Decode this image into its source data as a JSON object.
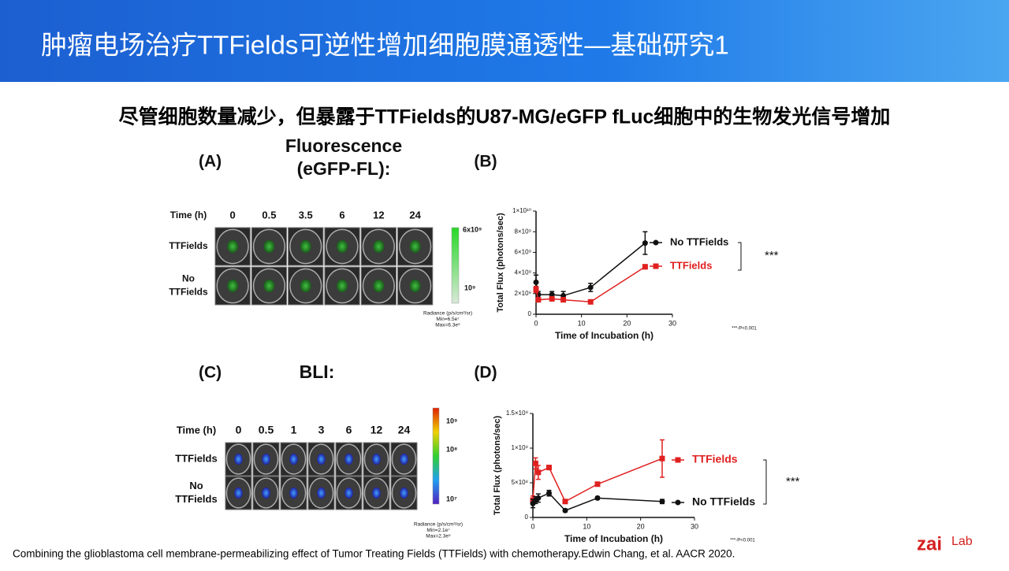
{
  "header": {
    "title": "肿瘤电场治疗TTFields可逆性增加细胞膜通透性—基础研究1"
  },
  "subtitle": "尽管细胞数量减少，但暴露于TTFields的U87-MG/eGFP fLuc细胞中的生物发光信号增加",
  "panel_a": {
    "label": "(A)",
    "title_lines": [
      "Fluorescence",
      "(eGFP-FL):"
    ],
    "time_label": "Time (h)",
    "times": [
      "0",
      "0.5",
      "3.5",
      "6",
      "12",
      "24"
    ],
    "rows": [
      [
        "TTFields"
      ],
      [
        "No",
        "TTFields"
      ]
    ],
    "colorbar_labels": [
      "6x10⁹",
      "10⁹"
    ],
    "radiance_lines": [
      "Radiance (p/s/cm²/sr)",
      "Min=6.5e⁷",
      "Max=6.3e⁹"
    ]
  },
  "panel_c": {
    "label": "(C)",
    "title_lines": [
      "BLI:"
    ],
    "time_label": "Time (h)",
    "times": [
      "0",
      "0.5",
      "1",
      "3",
      "6",
      "12",
      "24"
    ],
    "rows": [
      [
        "TTFields"
      ],
      [
        "No",
        "TTFields"
      ]
    ],
    "colorbar_labels": [
      "10⁹",
      "10⁸",
      "10⁷"
    ],
    "radiance_lines": [
      "Radiance (p/s/cm²/sr)",
      "Min=2.1e⁷",
      "Max=2.3e⁹"
    ]
  },
  "footer": {
    "citation": "Combining the glioblastoma cell membrane-permeabilizing effect of Tumor Treating Fields (TTFields) with chemotherapy.Edwin Chang, et al. AACR 2020.",
    "logo": [
      "zai",
      "Lab"
    ]
  },
  "chart_data": [
    {
      "type": "line",
      "panel_label": "(B)",
      "x_label": "Time of Incubation (h)",
      "y_label": "Total Flux (photons/sec)",
      "x": [
        0,
        0.5,
        3.5,
        6,
        12,
        24
      ],
      "xlim": [
        0,
        30
      ],
      "xticks": [
        0,
        10,
        20,
        30
      ],
      "ylim": [
        0,
        10000000000
      ],
      "yticks": [
        0,
        {
          "value": 2000000000,
          "label": "2×10⁹"
        },
        {
          "value": 4000000000,
          "label": "4×10⁹"
        },
        {
          "value": 6000000000,
          "label": "6×10⁹"
        },
        {
          "value": 8000000000,
          "label": "8×10⁹"
        },
        {
          "value": 10000000000,
          "label": "1×10¹⁰"
        }
      ],
      "series": [
        {
          "name": "No TTFields",
          "color": "#111111",
          "marker": "circle",
          "values": [
            3100000000,
            1900000000,
            1900000000,
            1800000000,
            2600000000,
            6900000000
          ],
          "errors": [
            700000000,
            300000000,
            300000000,
            400000000,
            400000000,
            1100000000
          ]
        },
        {
          "name": "TTFields",
          "color": "#e02020",
          "marker": "square",
          "values": [
            2400000000,
            1400000000,
            1500000000,
            1400000000,
            1200000000,
            4600000000
          ],
          "errors": [
            300000000,
            200000000,
            200000000,
            200000000,
            100000000,
            200000000
          ]
        }
      ],
      "annotation": "***",
      "note": "***-P<0.001"
    },
    {
      "type": "line",
      "panel_label": "(D)",
      "x_label": "Time of Incubation (h)",
      "y_label": "Total Flux (photons/sec)",
      "x": [
        0,
        0.5,
        1,
        3,
        6,
        12,
        24
      ],
      "xlim": [
        0,
        30
      ],
      "xticks": [
        0,
        10,
        20,
        30
      ],
      "ylim": [
        0,
        1500000000
      ],
      "yticks": [
        0,
        {
          "value": 500000000,
          "label": "5×10⁸"
        },
        {
          "value": 1000000000,
          "label": "1×10⁹"
        },
        {
          "value": 1500000000,
          "label": "1.5×10⁹"
        }
      ],
      "series": [
        {
          "name": "TTFields",
          "color": "#e02020",
          "marker": "square",
          "values": [
            250000000,
            780000000,
            650000000,
            720000000,
            230000000,
            480000000,
            850000000
          ],
          "errors": [
            60000000,
            80000000,
            100000000,
            30000000,
            20000000,
            20000000,
            270000000
          ]
        },
        {
          "name": "No TTFields",
          "color": "#111111",
          "marker": "circle",
          "values": [
            200000000,
            250000000,
            280000000,
            350000000,
            100000000,
            280000000,
            230000000
          ],
          "errors": [
            60000000,
            50000000,
            60000000,
            40000000,
            20000000,
            20000000,
            30000000
          ]
        }
      ],
      "annotation": "***",
      "note": "***-P<0.001"
    }
  ]
}
